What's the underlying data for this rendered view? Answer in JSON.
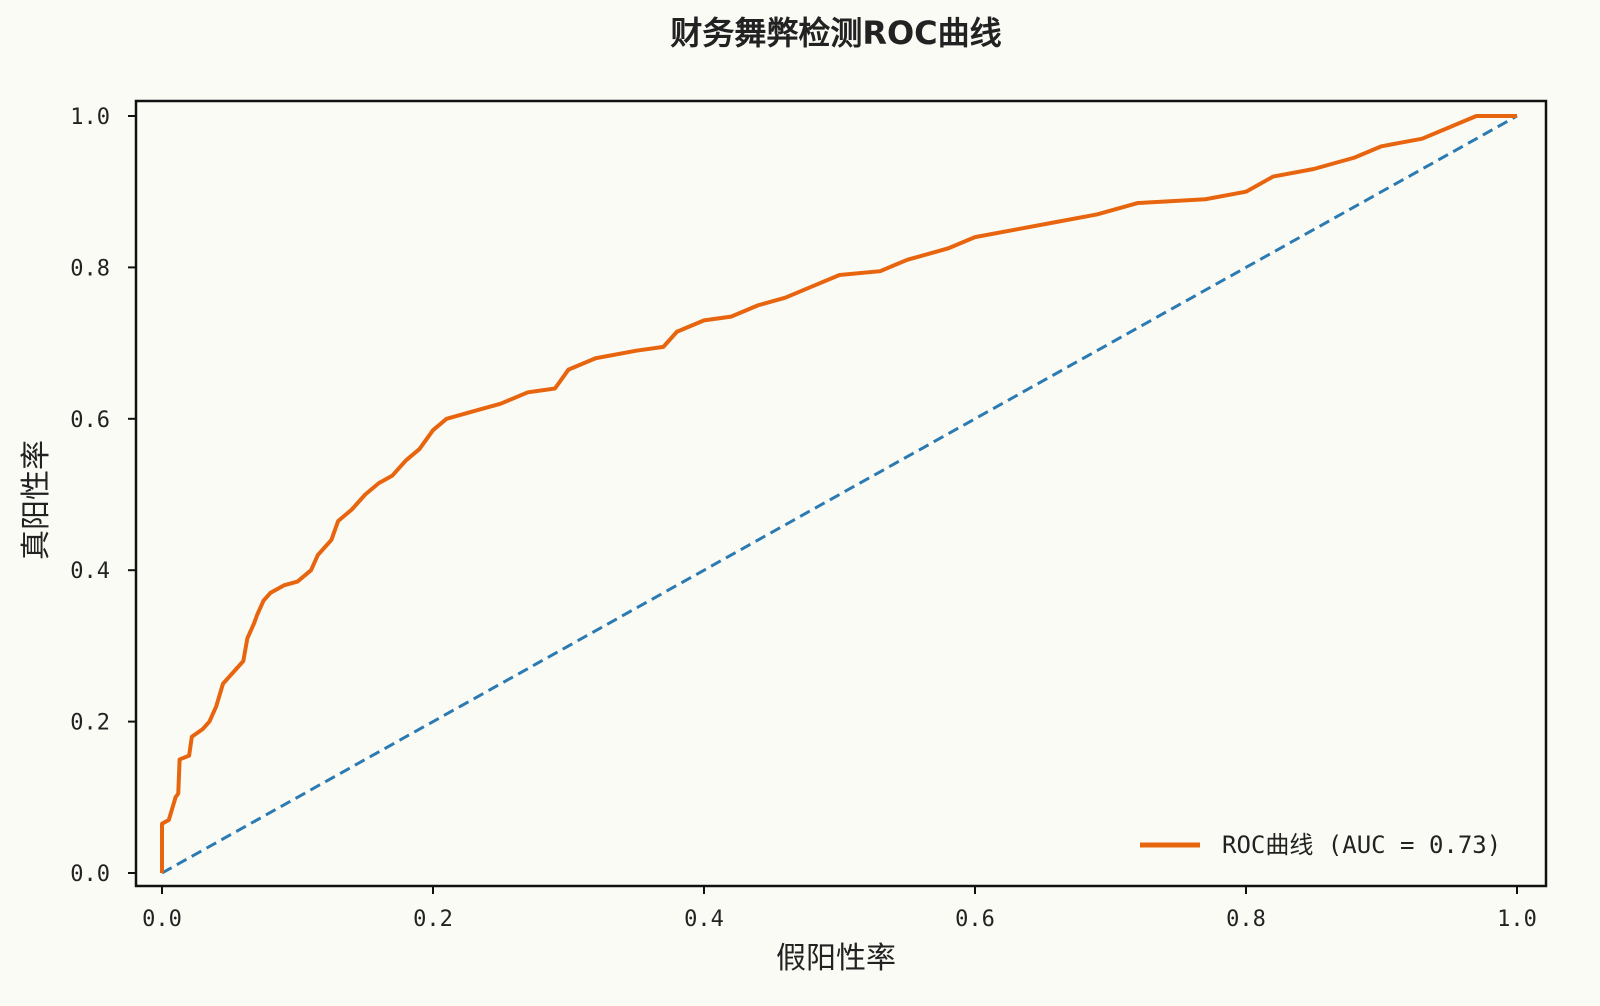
{
  "chart_data": {
    "type": "line",
    "title": "财务舞弊检测ROC曲线",
    "xlabel": "假阳性率",
    "ylabel": "真阳性率",
    "xlim": [
      0,
      1
    ],
    "ylim": [
      0,
      1
    ],
    "xticks": [
      "0.0",
      "0.2",
      "0.4",
      "0.6",
      "0.8",
      "1.0"
    ],
    "yticks": [
      "0.0",
      "0.2",
      "0.4",
      "0.6",
      "0.8",
      "1.0"
    ],
    "grid": false,
    "legend_position": "bottom-right",
    "series": [
      {
        "name": "ROC曲线 (AUC = 0.73)",
        "color": "#e8650f",
        "style": "solid",
        "x": [
          0,
          0,
          0.005,
          0.01,
          0.012,
          0.013,
          0.02,
          0.022,
          0.03,
          0.035,
          0.04,
          0.045,
          0.05,
          0.055,
          0.06,
          0.063,
          0.068,
          0.07,
          0.075,
          0.08,
          0.09,
          0.1,
          0.11,
          0.115,
          0.12,
          0.125,
          0.13,
          0.14,
          0.15,
          0.16,
          0.17,
          0.18,
          0.19,
          0.2,
          0.21,
          0.23,
          0.25,
          0.27,
          0.29,
          0.3,
          0.32,
          0.35,
          0.37,
          0.38,
          0.4,
          0.42,
          0.44,
          0.46,
          0.48,
          0.5,
          0.53,
          0.55,
          0.58,
          0.6,
          0.63,
          0.66,
          0.69,
          0.72,
          0.77,
          0.8,
          0.82,
          0.85,
          0.88,
          0.9,
          0.93,
          0.95,
          0.97,
          1.0
        ],
        "y": [
          0,
          0.065,
          0.07,
          0.1,
          0.105,
          0.15,
          0.155,
          0.18,
          0.19,
          0.2,
          0.22,
          0.25,
          0.26,
          0.27,
          0.28,
          0.31,
          0.33,
          0.34,
          0.36,
          0.37,
          0.38,
          0.385,
          0.4,
          0.42,
          0.43,
          0.44,
          0.465,
          0.48,
          0.5,
          0.515,
          0.525,
          0.545,
          0.56,
          0.585,
          0.6,
          0.61,
          0.62,
          0.635,
          0.64,
          0.665,
          0.68,
          0.69,
          0.695,
          0.715,
          0.73,
          0.735,
          0.75,
          0.76,
          0.775,
          0.79,
          0.795,
          0.81,
          0.825,
          0.84,
          0.85,
          0.86,
          0.87,
          0.885,
          0.89,
          0.9,
          0.92,
          0.93,
          0.945,
          0.96,
          0.97,
          0.985,
          1.0,
          1.0
        ]
      },
      {
        "name": "diagonal",
        "color": "#2b7bb2",
        "style": "dashed",
        "x": [
          0,
          1
        ],
        "y": [
          0,
          1
        ]
      }
    ],
    "legend": [
      "ROC曲线 (AUC = 0.73)"
    ]
  }
}
